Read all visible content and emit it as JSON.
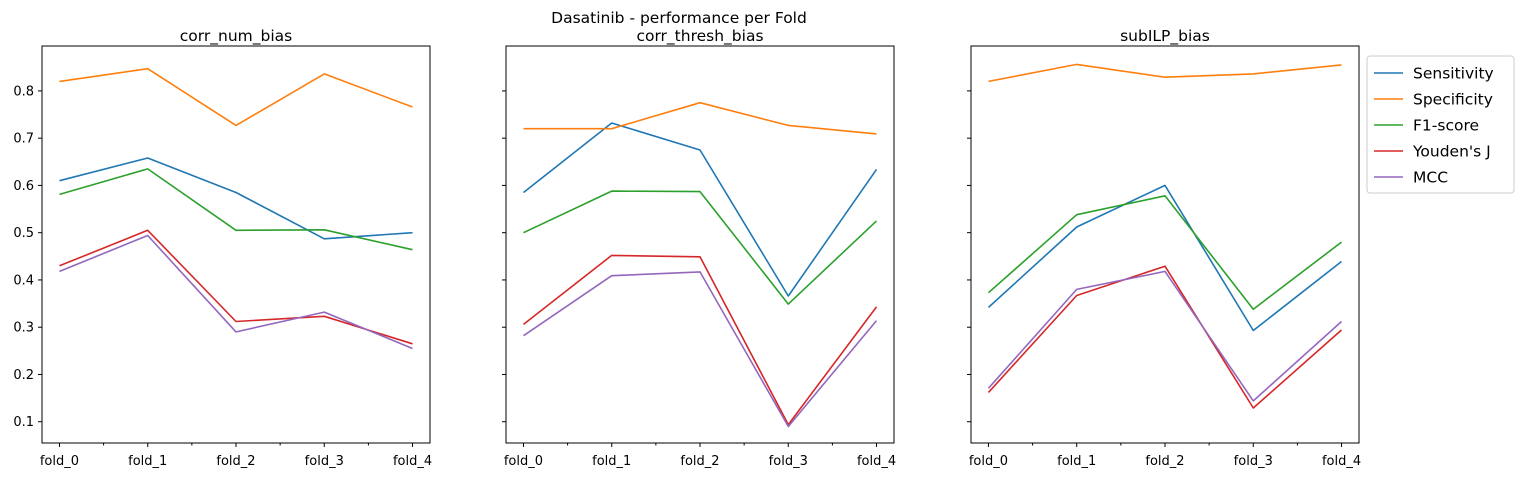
{
  "chart_data": {
    "type": "line",
    "suptitle": "Dasatinib - performance per Fold",
    "categories": [
      "fold_0",
      "fold_1",
      "fold_2",
      "fold_3",
      "fold_4"
    ],
    "ylim": [
      0.055,
      0.895
    ],
    "yticks": [
      "0.1",
      "0.2",
      "0.3",
      "0.4",
      "0.5",
      "0.6",
      "0.7",
      "0.8"
    ],
    "sharey": true,
    "grid": false,
    "legend": {
      "placement": "outside-right-top",
      "entries": [
        "Sensitivity",
        "Specificity",
        "F1-score",
        "Youden's J",
        "MCC"
      ]
    },
    "colors": {
      "Sensitivity": "#1f77b4",
      "Specificity": "#ff7f0e",
      "F1-score": "#2ca02c",
      "Youden's J": "#d62728",
      "MCC": "#9467bd"
    },
    "panels": [
      {
        "title": "corr_num_bias",
        "series": [
          {
            "name": "Sensitivity",
            "values": [
              0.61,
              0.658,
              0.585,
              0.487,
              0.5
            ]
          },
          {
            "name": "Specificity",
            "values": [
              0.82,
              0.847,
              0.727,
              0.836,
              0.766
            ]
          },
          {
            "name": "F1-score",
            "values": [
              0.581,
              0.635,
              0.505,
              0.506,
              0.464
            ]
          },
          {
            "name": "Youden's J",
            "values": [
              0.43,
              0.505,
              0.312,
              0.323,
              0.265
            ]
          },
          {
            "name": "MCC",
            "values": [
              0.418,
              0.494,
              0.29,
              0.332,
              0.255
            ]
          }
        ]
      },
      {
        "title": "corr_thresh_bias",
        "series": [
          {
            "name": "Sensitivity",
            "values": [
              0.585,
              0.732,
              0.675,
              0.366,
              0.634
            ]
          },
          {
            "name": "Specificity",
            "values": [
              0.72,
              0.72,
              0.775,
              0.727,
              0.709
            ]
          },
          {
            "name": "F1-score",
            "values": [
              0.5,
              0.588,
              0.587,
              0.349,
              0.525
            ]
          },
          {
            "name": "Youden's J",
            "values": [
              0.306,
              0.452,
              0.449,
              0.094,
              0.343
            ]
          },
          {
            "name": "MCC",
            "values": [
              0.282,
              0.409,
              0.417,
              0.09,
              0.314
            ]
          }
        ]
      },
      {
        "title": "subILP_bias",
        "series": [
          {
            "name": "Sensitivity",
            "values": [
              0.342,
              0.512,
              0.6,
              0.293,
              0.439
            ]
          },
          {
            "name": "Specificity",
            "values": [
              0.82,
              0.856,
              0.829,
              0.836,
              0.855
            ]
          },
          {
            "name": "F1-score",
            "values": [
              0.373,
              0.538,
              0.578,
              0.338,
              0.48
            ]
          },
          {
            "name": "Youden's J",
            "values": [
              0.162,
              0.367,
              0.429,
              0.129,
              0.294
            ]
          },
          {
            "name": "MCC",
            "values": [
              0.171,
              0.38,
              0.418,
              0.144,
              0.312
            ]
          }
        ]
      }
    ]
  }
}
